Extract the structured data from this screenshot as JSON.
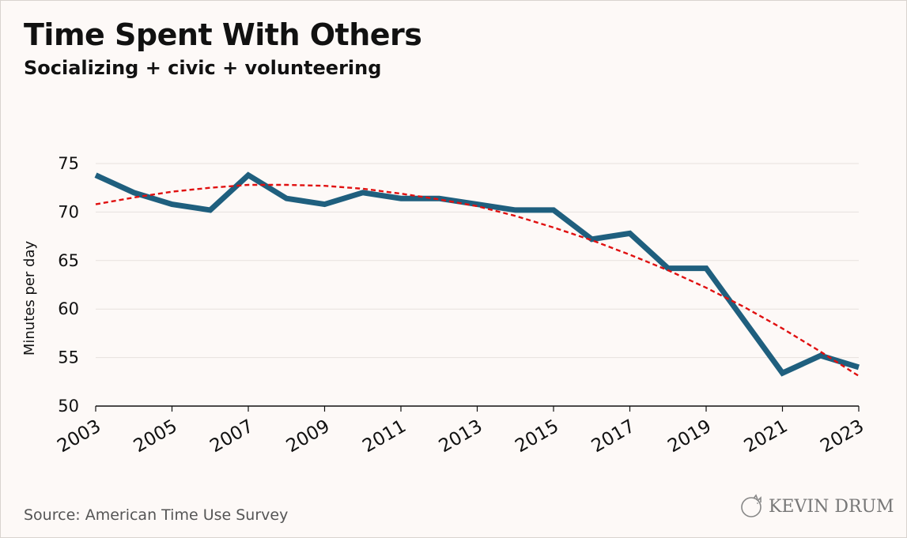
{
  "header": {
    "title": "Time Spent With Others",
    "subtitle": "Socializing + civic + volunteering"
  },
  "footer": {
    "source": "Source: American Time Use Survey",
    "brand": "KEVIN DRUM"
  },
  "chart_data": {
    "type": "line",
    "title": "Time Spent With Others",
    "subtitle": "Socializing + civic + volunteering",
    "xlabel": "",
    "ylabel": "Minutes per day",
    "x": [
      2003,
      2004,
      2005,
      2006,
      2007,
      2008,
      2009,
      2010,
      2011,
      2012,
      2013,
      2014,
      2015,
      2016,
      2017,
      2018,
      2019,
      2020,
      2021,
      2022,
      2023
    ],
    "xticks": [
      "2003",
      "2005",
      "2007",
      "2009",
      "2011",
      "2013",
      "2015",
      "2017",
      "2019",
      "2021",
      "2023"
    ],
    "yticks": [
      "50",
      "55",
      "60",
      "65",
      "70",
      "75"
    ],
    "xlim": [
      2003,
      2023
    ],
    "ylim": [
      50,
      75
    ],
    "grid": true,
    "legend": "none",
    "series": [
      {
        "name": "",
        "color": "#1f5f7e",
        "style": "solid",
        "points": [
          [
            2003,
            73.8
          ],
          [
            2004,
            72.0
          ],
          [
            2005,
            70.8
          ],
          [
            2006,
            70.2
          ],
          [
            2007,
            73.8
          ],
          [
            2008,
            71.4
          ],
          [
            2009,
            70.8
          ],
          [
            2010,
            72.0
          ],
          [
            2011,
            71.4
          ],
          [
            2012,
            71.4
          ],
          [
            2013,
            70.8
          ],
          [
            2014,
            70.2
          ],
          [
            2015,
            70.2
          ],
          [
            2016,
            67.2
          ],
          [
            2017,
            67.8
          ],
          [
            2018,
            64.2
          ],
          [
            2019,
            64.2
          ],
          [
            2021,
            53.4
          ],
          [
            2022,
            55.2
          ],
          [
            2023,
            54.0
          ]
        ]
      },
      {
        "name": "",
        "color": "#e01010",
        "style": "dashed",
        "points": [
          [
            2003,
            70.8
          ],
          [
            2004,
            71.5
          ],
          [
            2005,
            72.1
          ],
          [
            2006,
            72.5
          ],
          [
            2007,
            72.8
          ],
          [
            2008,
            72.8
          ],
          [
            2009,
            72.7
          ],
          [
            2010,
            72.4
          ],
          [
            2011,
            71.9
          ],
          [
            2012,
            71.3
          ],
          [
            2013,
            70.6
          ],
          [
            2014,
            69.6
          ],
          [
            2015,
            68.4
          ],
          [
            2016,
            67.1
          ],
          [
            2017,
            65.6
          ],
          [
            2018,
            64.0
          ],
          [
            2019,
            62.2
          ],
          [
            2020,
            60.2
          ],
          [
            2021,
            58.0
          ],
          [
            2022,
            55.6
          ],
          [
            2023,
            53.1
          ]
        ]
      }
    ]
  }
}
